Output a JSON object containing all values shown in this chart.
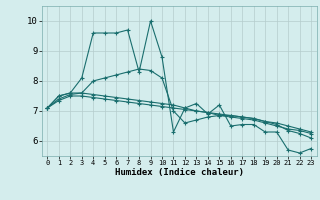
{
  "title": "",
  "xlabel": "Humidex (Indice chaleur)",
  "xlim": [
    -0.5,
    23.5
  ],
  "ylim": [
    5.5,
    10.5
  ],
  "yticks": [
    6,
    7,
    8,
    9,
    10
  ],
  "xticks": [
    0,
    1,
    2,
    3,
    4,
    5,
    6,
    7,
    8,
    9,
    10,
    11,
    12,
    13,
    14,
    15,
    16,
    17,
    18,
    19,
    20,
    21,
    22,
    23
  ],
  "bg_color": "#d4eded",
  "grid_color": "#b5cccc",
  "line_color": "#1a6e6e",
  "lines": [
    [
      7.1,
      7.5,
      7.6,
      8.1,
      9.6,
      9.6,
      9.6,
      9.7,
      8.3,
      10.0,
      8.8,
      6.3,
      7.1,
      7.25,
      6.9,
      7.2,
      6.5,
      6.55,
      6.55,
      6.3,
      6.3,
      5.7,
      5.6,
      5.75
    ],
    [
      7.1,
      7.5,
      7.6,
      7.6,
      8.0,
      8.1,
      8.2,
      8.3,
      8.4,
      8.35,
      8.1,
      7.0,
      6.6,
      6.7,
      6.8,
      6.85,
      6.85,
      6.8,
      6.75,
      6.65,
      6.55,
      6.35,
      6.25,
      6.1
    ],
    [
      7.1,
      7.4,
      7.55,
      7.6,
      7.55,
      7.5,
      7.45,
      7.4,
      7.35,
      7.3,
      7.25,
      7.2,
      7.1,
      7.0,
      6.95,
      6.9,
      6.85,
      6.8,
      6.75,
      6.65,
      6.6,
      6.5,
      6.4,
      6.3
    ],
    [
      7.1,
      7.35,
      7.5,
      7.5,
      7.45,
      7.4,
      7.35,
      7.3,
      7.25,
      7.2,
      7.15,
      7.1,
      7.05,
      7.0,
      6.95,
      6.85,
      6.8,
      6.75,
      6.7,
      6.6,
      6.5,
      6.4,
      6.35,
      6.25
    ]
  ]
}
